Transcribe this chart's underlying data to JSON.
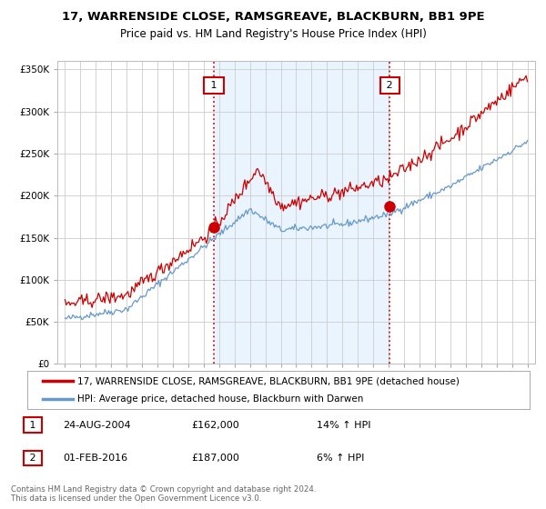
{
  "title1": "17, WARRENSIDE CLOSE, RAMSGREAVE, BLACKBURN, BB1 9PE",
  "title2": "Price paid vs. HM Land Registry's House Price Index (HPI)",
  "legend_line1": "17, WARRENSIDE CLOSE, RAMSGREAVE, BLACKBURN, BB1 9PE (detached house)",
  "legend_line2": "HPI: Average price, detached house, Blackburn with Darwen",
  "sale1_date": "24-AUG-2004",
  "sale1_price": "£162,000",
  "sale1_hpi": "14% ↑ HPI",
  "sale2_date": "01-FEB-2016",
  "sale2_price": "£187,000",
  "sale2_hpi": "6% ↑ HPI",
  "footnote": "Contains HM Land Registry data © Crown copyright and database right 2024.\nThis data is licensed under the Open Government Licence v3.0.",
  "sale1_x": 2004.65,
  "sale1_y": 162000,
  "sale2_x": 2016.08,
  "sale2_y": 187000,
  "line1_color": "#cc0000",
  "line2_color": "#6699cc",
  "fill_color": "#ddeeff",
  "vline_color": "#cc0000",
  "ylim": [
    0,
    360000
  ],
  "xlim_left": 1994.5,
  "xlim_right": 2025.5,
  "background_color": "#ffffff",
  "grid_color": "#cccccc",
  "label_box_color": "#cc0000",
  "label_text_color": "#000000"
}
